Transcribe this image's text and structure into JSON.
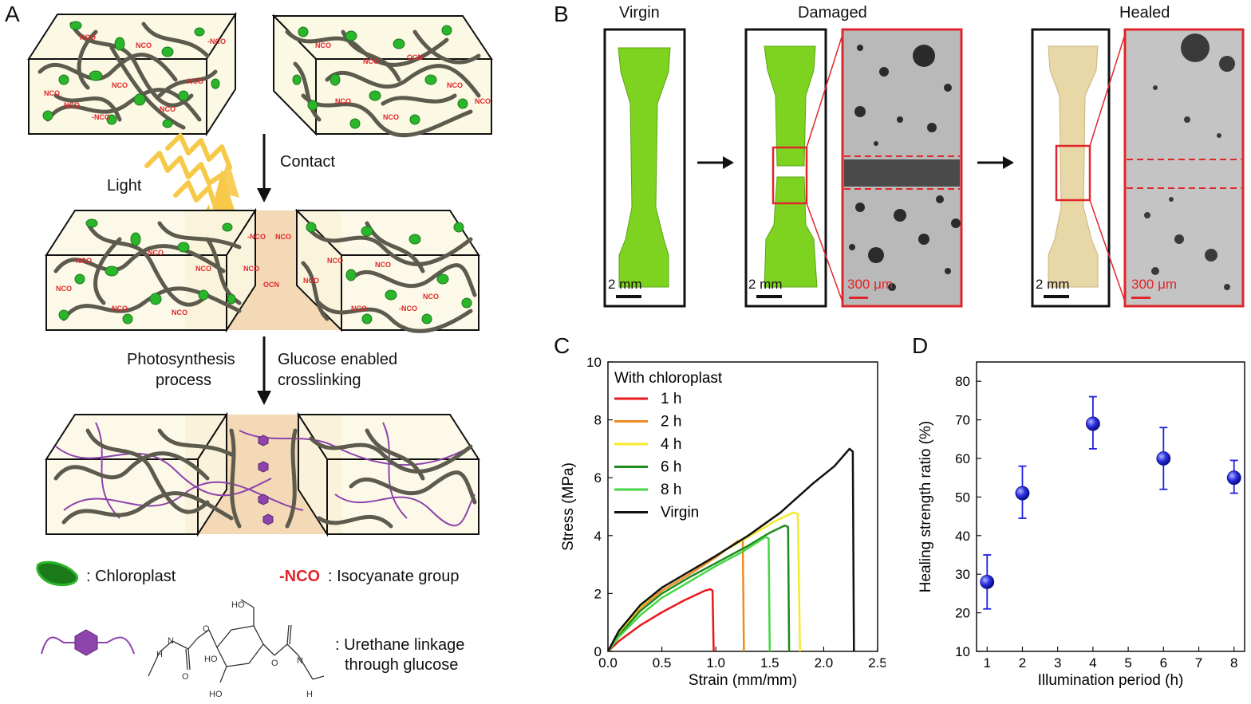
{
  "panel_a": {
    "letter": "A",
    "contact_label": "Contact",
    "light_label": "Light",
    "nco": "NCO",
    "nco_dash": "-NCO",
    "photosynthesis_label": "Photosynthesis\nprocess",
    "photosynthesis_line1": "Photosynthesis",
    "photosynthesis_line2": "process",
    "glucose_line1": "Glucose enabled",
    "glucose_line2": "crosslinking",
    "legend_chloroplast": ": Chloroplast",
    "legend_nco_symbol": "-NCO",
    "legend_nco_text": ": Isocyanate group",
    "legend_urethane_line1": ": Urethane linkage",
    "legend_urethane_line2": "through glucose",
    "chem_labels": {
      "ho_top": "HO",
      "n_left": "N",
      "h_left": "H",
      "o_ring": "O",
      "ho_mid": "HO",
      "ho_bottom": "HO",
      "o_right": "O",
      "n_right": "N",
      "h_right": "H",
      "o_carbonyl": "O"
    },
    "colors": {
      "chloroplast": "#2bb52b",
      "nco": "#e0262a",
      "chain": "#5d5a4e",
      "urethane": "#8e44ad",
      "box_fill": "#fbf8e4",
      "contact_zone": "#f3d9b6",
      "light": "#f7c948"
    }
  },
  "panel_b": {
    "letter": "B",
    "virgin_label": "Virgin",
    "damaged_label": "Damaged",
    "healed_label": "Healed",
    "scale_2mm": "2 mm",
    "scale_300um": "300 μm",
    "colors": {
      "specimen_green": "#7ed321",
      "specimen_healed": "#e8d8a8",
      "zoom_frame": "#e0262a"
    }
  },
  "panel_c": {
    "letter": "C",
    "legend_title": "With chloroplast",
    "xlabel": "Strain (mm/mm)",
    "ylabel": "Stress (MPa)"
  },
  "panel_d": {
    "letter": "D",
    "xlabel": "Illumination period (h)",
    "ylabel": "Healing strength ratio (%)"
  },
  "chart_data": [
    {
      "type": "line",
      "panel": "C",
      "title": "",
      "xlabel": "Strain (mm/mm)",
      "ylabel": "Stress (MPa)",
      "xlim": [
        0,
        2.5
      ],
      "ylim": [
        0,
        10
      ],
      "xticks": [
        "0.0",
        "0.5",
        "1.0",
        "1.5",
        "2.0",
        "2.5"
      ],
      "yticks": [
        "0",
        "2",
        "4",
        "6",
        "8",
        "10"
      ],
      "legend_title": "With chloroplast",
      "legend_position": "top-left",
      "series": [
        {
          "name": "1 h",
          "color": "#e8191c",
          "x": [
            0,
            0.1,
            0.3,
            0.5,
            0.7,
            0.9,
            0.95,
            0.97,
            0.98
          ],
          "y": [
            0,
            0.35,
            0.9,
            1.35,
            1.75,
            2.1,
            2.15,
            2.1,
            0
          ]
        },
        {
          "name": "2 h",
          "color": "#f08a24",
          "x": [
            0,
            0.1,
            0.3,
            0.5,
            0.75,
            1.0,
            1.2,
            1.25,
            1.26
          ],
          "y": [
            0,
            0.6,
            1.5,
            2.1,
            2.65,
            3.25,
            3.8,
            3.85,
            0
          ]
        },
        {
          "name": "4 h",
          "color": "#f5ea2a",
          "x": [
            0,
            0.1,
            0.3,
            0.5,
            0.75,
            1.0,
            1.3,
            1.55,
            1.72,
            1.76,
            1.78
          ],
          "y": [
            0,
            0.65,
            1.55,
            2.2,
            2.75,
            3.3,
            3.95,
            4.5,
            4.8,
            4.75,
            0
          ]
        },
        {
          "name": "6 h",
          "color": "#1f8a1f",
          "x": [
            0,
            0.1,
            0.3,
            0.5,
            0.75,
            1.0,
            1.3,
            1.5,
            1.64,
            1.67,
            1.68
          ],
          "y": [
            0,
            0.55,
            1.4,
            2.0,
            2.55,
            3.05,
            3.65,
            4.1,
            4.35,
            4.3,
            0
          ]
        },
        {
          "name": "8 h",
          "color": "#45d645",
          "x": [
            0,
            0.1,
            0.3,
            0.5,
            0.75,
            1.0,
            1.25,
            1.46,
            1.49,
            1.5
          ],
          "y": [
            0,
            0.5,
            1.25,
            1.85,
            2.4,
            2.95,
            3.45,
            3.95,
            3.9,
            0
          ]
        },
        {
          "name": "Virgin",
          "color": "#111111",
          "x": [
            0,
            0.1,
            0.3,
            0.5,
            0.75,
            1.0,
            1.3,
            1.6,
            1.9,
            2.1,
            2.24,
            2.27,
            2.28
          ],
          "y": [
            0,
            0.7,
            1.6,
            2.2,
            2.75,
            3.3,
            4.0,
            4.8,
            5.8,
            6.4,
            7.0,
            6.9,
            0
          ]
        }
      ]
    },
    {
      "type": "scatter",
      "panel": "D",
      "title": "",
      "xlabel": "Illumination period (h)",
      "ylabel": "Healing strength ratio (%)",
      "xlim": [
        0.7,
        8.3
      ],
      "ylim": [
        10,
        85
      ],
      "xticks": [
        "1",
        "2",
        "3",
        "4",
        "5",
        "6",
        "7",
        "8"
      ],
      "yticks": [
        "10",
        "20",
        "30",
        "40",
        "50",
        "60",
        "70",
        "80"
      ],
      "marker_color": "#2020e0",
      "series": [
        {
          "x": [
            1,
            2,
            4,
            6,
            8
          ],
          "y": [
            28,
            51,
            69,
            60,
            55
          ],
          "err_low": [
            21,
            44.5,
            62.5,
            52,
            51
          ],
          "err_high": [
            35,
            58,
            76,
            68,
            59.5
          ]
        }
      ]
    }
  ]
}
